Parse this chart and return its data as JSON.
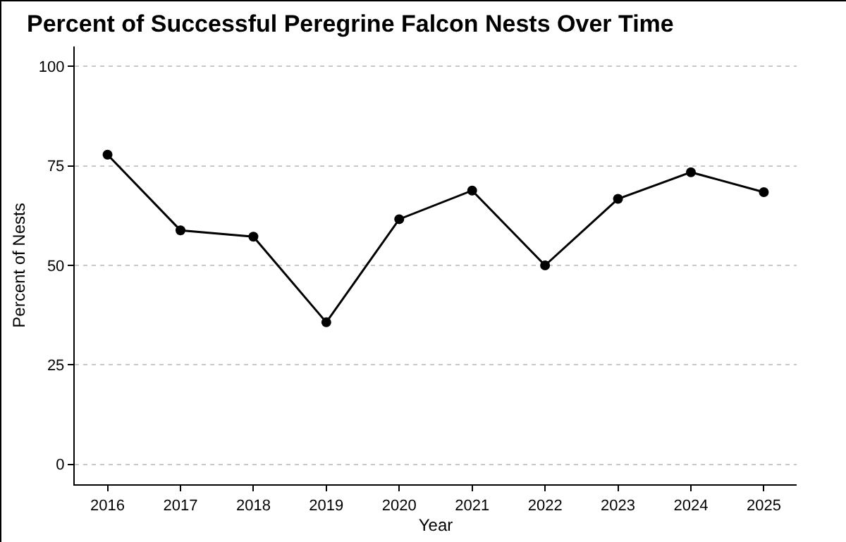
{
  "chart_data": {
    "type": "line",
    "title": "Percent of Successful Peregrine Falcon Nests Over Time",
    "xlabel": "Year",
    "ylabel": "Percent of Nests",
    "categories": [
      "2016",
      "2017",
      "2018",
      "2019",
      "2020",
      "2021",
      "2022",
      "2023",
      "2024",
      "2025"
    ],
    "series": [
      {
        "color": "#000000",
        "values": [
          77.8,
          58.8,
          57.2,
          35.7,
          61.6,
          68.8,
          50,
          66.7,
          73.4,
          68.4
        ]
      }
    ],
    "ylim": [
      -5,
      105
    ],
    "yticks": [
      0,
      25,
      50,
      75,
      100
    ],
    "grid": "y",
    "marker": "circle",
    "line_style": "solid"
  }
}
